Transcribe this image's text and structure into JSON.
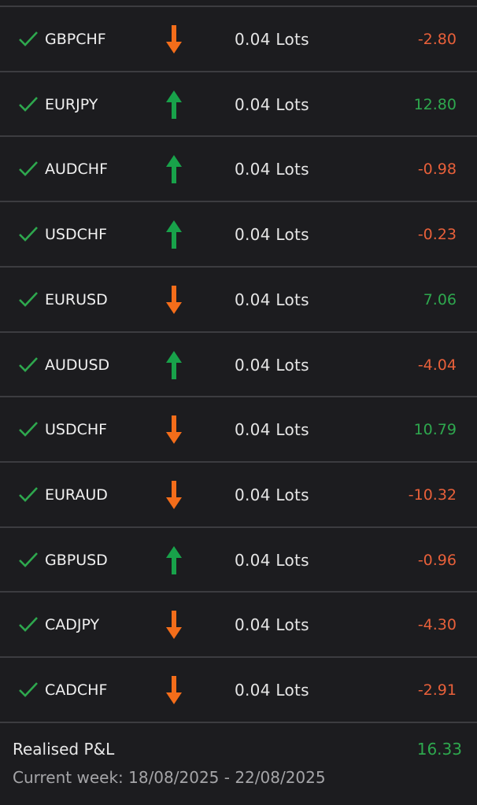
{
  "colors": {
    "profit": "#2ea84e",
    "loss": "#e8603a",
    "buy_arrow": "#18a24a",
    "sell_arrow": "#f36d1a",
    "check": "#2ea84e"
  },
  "trades": [
    {
      "symbol": "GBPCHF",
      "direction": "sell",
      "direction_icon": "arrow-down-icon",
      "lots": "0.04 Lots",
      "pnl": "-2.80"
    },
    {
      "symbol": "EURJPY",
      "direction": "buy",
      "direction_icon": "arrow-up-icon",
      "lots": "0.04 Lots",
      "pnl": "12.80"
    },
    {
      "symbol": "AUDCHF",
      "direction": "buy",
      "direction_icon": "arrow-up-icon",
      "lots": "0.04 Lots",
      "pnl": "-0.98"
    },
    {
      "symbol": "USDCHF",
      "direction": "buy",
      "direction_icon": "arrow-up-icon",
      "lots": "0.04 Lots",
      "pnl": "-0.23"
    },
    {
      "symbol": "EURUSD",
      "direction": "sell",
      "direction_icon": "arrow-down-icon",
      "lots": "0.04 Lots",
      "pnl": "7.06"
    },
    {
      "symbol": "AUDUSD",
      "direction": "buy",
      "direction_icon": "arrow-up-icon",
      "lots": "0.04 Lots",
      "pnl": "-4.04"
    },
    {
      "symbol": "USDCHF",
      "direction": "sell",
      "direction_icon": "arrow-down-icon",
      "lots": "0.04 Lots",
      "pnl": "10.79"
    },
    {
      "symbol": "EURAUD",
      "direction": "sell",
      "direction_icon": "arrow-down-icon",
      "lots": "0.04 Lots",
      "pnl": "-10.32"
    },
    {
      "symbol": "GBPUSD",
      "direction": "buy",
      "direction_icon": "arrow-up-icon",
      "lots": "0.04 Lots",
      "pnl": "-0.96"
    },
    {
      "symbol": "CADJPY",
      "direction": "sell",
      "direction_icon": "arrow-down-icon",
      "lots": "0.04 Lots",
      "pnl": "-4.30"
    },
    {
      "symbol": "CADCHF",
      "direction": "sell",
      "direction_icon": "arrow-down-icon",
      "lots": "0.04 Lots",
      "pnl": "-2.91"
    }
  ],
  "summary": {
    "label": "Realised P&L",
    "value": "16.33",
    "period": "Current week: 18/08/2025 - 22/08/2025"
  }
}
